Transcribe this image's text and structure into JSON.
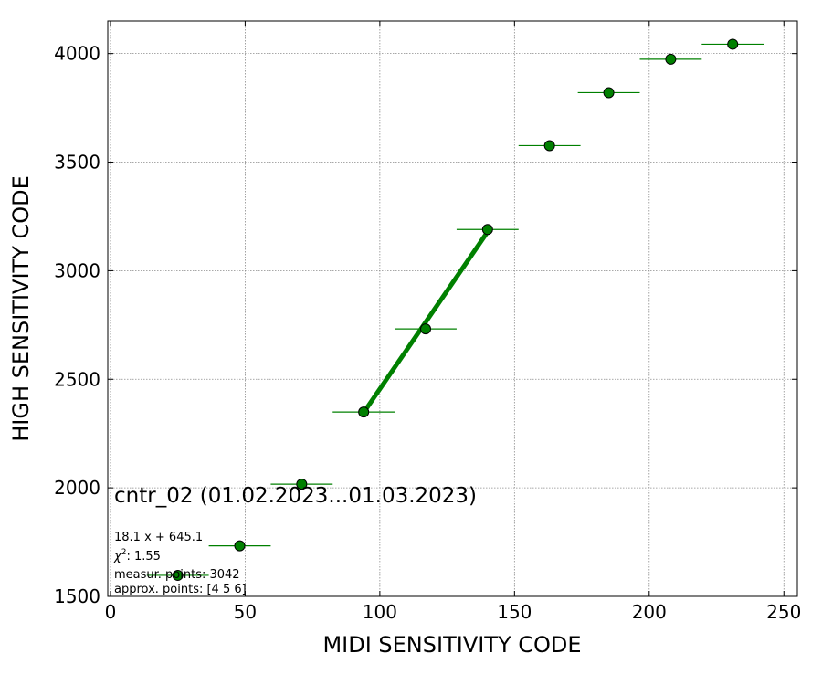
{
  "chart_data": {
    "type": "scatter",
    "xlabel": "MIDI SENSITIVITY CODE",
    "ylabel": "HIGH SENSITIVITY CODE",
    "xlim": [
      -1,
      255
    ],
    "ylim": [
      1500,
      4150
    ],
    "xticks": [
      0,
      50,
      100,
      150,
      200,
      250
    ],
    "yticks": [
      1500,
      2000,
      2500,
      3000,
      3500,
      4000
    ],
    "grid": true,
    "points": [
      {
        "x": 25,
        "y": 1597,
        "xerr": 11.5
      },
      {
        "x": 48,
        "y": 1733,
        "xerr": 11.5
      },
      {
        "x": 71,
        "y": 2017,
        "xerr": 11.5
      },
      {
        "x": 94,
        "y": 2349,
        "xerr": 11.5
      },
      {
        "x": 117,
        "y": 2732,
        "xerr": 11.5
      },
      {
        "x": 140,
        "y": 3190,
        "xerr": 11.5
      },
      {
        "x": 163,
        "y": 3576,
        "xerr": 11.5
      },
      {
        "x": 185,
        "y": 3820,
        "xerr": 11.5
      },
      {
        "x": 208,
        "y": 3974,
        "xerr": 11.5
      },
      {
        "x": 231,
        "y": 4043,
        "xerr": 11.5
      }
    ],
    "fit_line": {
      "slope": 18.1,
      "intercept": 645.1,
      "x_range": [
        94,
        140
      ]
    },
    "marker_color": "#008000",
    "marker_edge": "#000000",
    "errorbar_color": "#008000",
    "fit_color": "#008000"
  },
  "annotations": {
    "title": "cntr_02 (01.02.2023...01.03.2023)",
    "equation": "18.1 x + 645.1",
    "chi2_value": "1.55",
    "measur_points": "measur. points: 3042",
    "approx_points": "approx. points: [4 5 6]"
  }
}
